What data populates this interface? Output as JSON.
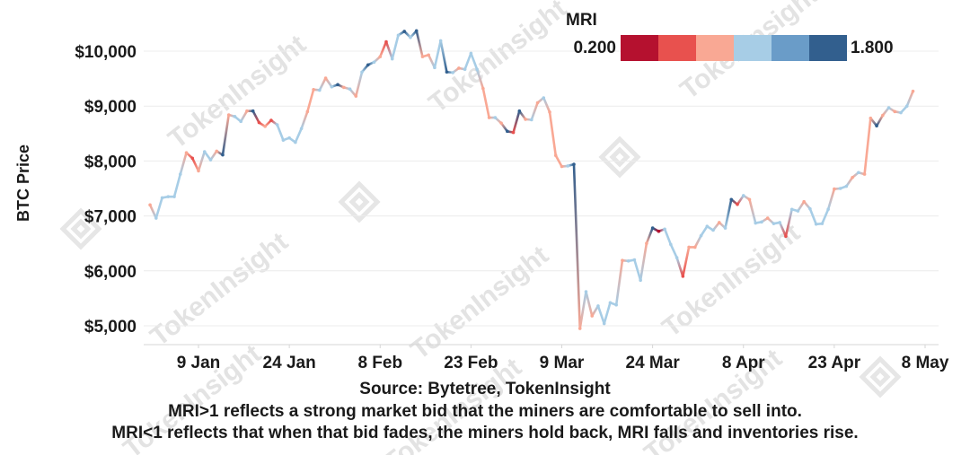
{
  "chart_data": {
    "type": "line",
    "ylabel": "BTC Price",
    "ylim": [
      4750,
      10600
    ],
    "yticks": [
      5000,
      6000,
      7000,
      8000,
      9000,
      10000
    ],
    "ytick_labels": [
      "$5,000",
      "$6,000",
      "$7,000",
      "$8,000",
      "$9,000",
      "$10,000"
    ],
    "xlim": [
      "2019-12-28",
      "2020-05-11"
    ],
    "xticks": [
      "2020-01-09",
      "2020-01-24",
      "2020-02-08",
      "2020-02-23",
      "2020-03-09",
      "2020-03-24",
      "2020-04-08",
      "2020-04-23",
      "2020-05-08"
    ],
    "xtick_labels": [
      "9 Jan",
      "24 Jan",
      "8 Feb",
      "23 Feb",
      "9 Mar",
      "24 Mar",
      "8 Apr",
      "23 Apr",
      "8 May"
    ],
    "grid": "horizontal",
    "legend": {
      "title": "MRI",
      "min_label": "0.200",
      "max_label": "1.800",
      "placement": "top-right",
      "colors": [
        "#b5112f",
        "#e8514e",
        "#f9a894",
        "#a7cde6",
        "#6a9cc8",
        "#325f8e"
      ]
    },
    "series": [
      {
        "points": [
          [
            "2020-01-01",
            7200,
            0.8
          ],
          [
            "2020-01-02",
            6960,
            1.2
          ],
          [
            "2020-01-03",
            7330,
            1.2
          ],
          [
            "2020-01-04",
            7350,
            1.2
          ],
          [
            "2020-01-05",
            7350,
            1.2
          ],
          [
            "2020-01-06",
            7760,
            1.2
          ],
          [
            "2020-01-07",
            8150,
            0.8
          ],
          [
            "2020-01-08",
            8050,
            0.6
          ],
          [
            "2020-01-09",
            7820,
            0.8
          ],
          [
            "2020-01-10",
            8170,
            1.2
          ],
          [
            "2020-01-11",
            8020,
            1.2
          ],
          [
            "2020-01-12",
            8180,
            0.8
          ],
          [
            "2020-01-13",
            8110,
            1.7
          ],
          [
            "2020-01-14",
            8840,
            0.8
          ],
          [
            "2020-01-15",
            8810,
            1.2
          ],
          [
            "2020-01-16",
            8720,
            1.2
          ],
          [
            "2020-01-17",
            8910,
            0.8
          ],
          [
            "2020-01-18",
            8910,
            1.6
          ],
          [
            "2020-01-19",
            8700,
            0.6
          ],
          [
            "2020-01-20",
            8630,
            0.8
          ],
          [
            "2020-01-21",
            8740,
            0.6
          ],
          [
            "2020-01-22",
            8660,
            1.2
          ],
          [
            "2020-01-23",
            8380,
            1.2
          ],
          [
            "2020-01-24",
            8420,
            1.2
          ],
          [
            "2020-01-25",
            8340,
            1.2
          ],
          [
            "2020-01-26",
            8590,
            1.2
          ],
          [
            "2020-01-27",
            8900,
            0.8
          ],
          [
            "2020-01-28",
            9300,
            0.8
          ],
          [
            "2020-01-29",
            9290,
            1.2
          ],
          [
            "2020-01-30",
            9510,
            0.8
          ],
          [
            "2020-01-31",
            9350,
            1.2
          ],
          [
            "2020-02-01",
            9390,
            1.6
          ],
          [
            "2020-02-02",
            9340,
            0.8
          ],
          [
            "2020-02-03",
            9310,
            1.2
          ],
          [
            "2020-02-04",
            9180,
            0.8
          ],
          [
            "2020-02-05",
            9620,
            1.2
          ],
          [
            "2020-02-06",
            9750,
            1.6
          ],
          [
            "2020-02-07",
            9800,
            1.2
          ],
          [
            "2020-02-08",
            9900,
            0.8
          ],
          [
            "2020-02-09",
            10170,
            0.6
          ],
          [
            "2020-02-10",
            9860,
            1.2
          ],
          [
            "2020-02-11",
            10290,
            1.2
          ],
          [
            "2020-02-12",
            10360,
            1.6
          ],
          [
            "2020-02-13",
            10250,
            1.2
          ],
          [
            "2020-02-14",
            10370,
            1.6
          ],
          [
            "2020-02-15",
            9900,
            0.8
          ],
          [
            "2020-02-16",
            9930,
            0.8
          ],
          [
            "2020-02-17",
            9700,
            1.2
          ],
          [
            "2020-02-18",
            10190,
            1.2
          ],
          [
            "2020-02-19",
            9620,
            1.6
          ],
          [
            "2020-02-20",
            9610,
            1.2
          ],
          [
            "2020-02-21",
            9690,
            0.8
          ],
          [
            "2020-02-22",
            9670,
            1.2
          ],
          [
            "2020-02-23",
            9960,
            1.2
          ],
          [
            "2020-02-24",
            9670,
            1.2
          ],
          [
            "2020-02-25",
            9320,
            0.8
          ],
          [
            "2020-02-26",
            8790,
            0.8
          ],
          [
            "2020-02-27",
            8790,
            1.2
          ],
          [
            "2020-02-28",
            8690,
            0.8
          ],
          [
            "2020-02-29",
            8540,
            1.6
          ],
          [
            "2020-03-01",
            8520,
            0.6
          ],
          [
            "2020-03-02",
            8910,
            1.6
          ],
          [
            "2020-03-03",
            8760,
            0.8
          ],
          [
            "2020-03-04",
            8750,
            1.2
          ],
          [
            "2020-03-05",
            9060,
            0.8
          ],
          [
            "2020-03-06",
            9150,
            1.2
          ],
          [
            "2020-03-07",
            8890,
            0.8
          ],
          [
            "2020-03-08",
            8100,
            0.8
          ],
          [
            "2020-03-09",
            7900,
            0.8
          ],
          [
            "2020-03-10",
            7910,
            1.2
          ],
          [
            "2020-03-11",
            7940,
            1.7
          ],
          [
            "2020-03-12",
            4950,
            0.8
          ],
          [
            "2020-03-13",
            5620,
            1.2
          ],
          [
            "2020-03-14",
            5180,
            0.8
          ],
          [
            "2020-03-15",
            5360,
            1.2
          ],
          [
            "2020-03-16",
            5040,
            1.2
          ],
          [
            "2020-03-17",
            5420,
            1.2
          ],
          [
            "2020-03-18",
            5380,
            1.2
          ],
          [
            "2020-03-19",
            6190,
            0.8
          ],
          [
            "2020-03-20",
            6180,
            1.2
          ],
          [
            "2020-03-21",
            6200,
            1.2
          ],
          [
            "2020-03-22",
            5830,
            1.2
          ],
          [
            "2020-03-23",
            6500,
            0.8
          ],
          [
            "2020-03-24",
            6780,
            1.6
          ],
          [
            "2020-03-25",
            6720,
            0.4
          ],
          [
            "2020-03-26",
            6760,
            1.2
          ],
          [
            "2020-03-27",
            6480,
            1.2
          ],
          [
            "2020-03-28",
            6240,
            1.2
          ],
          [
            "2020-03-29",
            5900,
            0.6
          ],
          [
            "2020-03-30",
            6430,
            0.8
          ],
          [
            "2020-03-31",
            6430,
            0.8
          ],
          [
            "2020-04-01",
            6640,
            1.2
          ],
          [
            "2020-04-02",
            6810,
            1.2
          ],
          [
            "2020-04-03",
            6740,
            1.2
          ],
          [
            "2020-04-04",
            6880,
            0.8
          ],
          [
            "2020-04-05",
            6780,
            1.2
          ],
          [
            "2020-04-06",
            7300,
            1.6
          ],
          [
            "2020-04-07",
            7210,
            0.6
          ],
          [
            "2020-04-08",
            7370,
            1.2
          ],
          [
            "2020-04-09",
            7300,
            0.8
          ],
          [
            "2020-04-10",
            6870,
            1.2
          ],
          [
            "2020-04-11",
            6890,
            1.2
          ],
          [
            "2020-04-12",
            6960,
            0.8
          ],
          [
            "2020-04-13",
            6860,
            1.2
          ],
          [
            "2020-04-14",
            6880,
            1.2
          ],
          [
            "2020-04-15",
            6630,
            0.6
          ],
          [
            "2020-04-16",
            7120,
            1.2
          ],
          [
            "2020-04-17",
            7090,
            1.2
          ],
          [
            "2020-04-18",
            7260,
            0.8
          ],
          [
            "2020-04-19",
            7130,
            1.2
          ],
          [
            "2020-04-20",
            6850,
            1.2
          ],
          [
            "2020-04-21",
            6860,
            1.2
          ],
          [
            "2020-04-22",
            7120,
            1.2
          ],
          [
            "2020-04-23",
            7490,
            0.8
          ],
          [
            "2020-04-24",
            7500,
            1.2
          ],
          [
            "2020-04-25",
            7540,
            1.2
          ],
          [
            "2020-04-26",
            7700,
            0.8
          ],
          [
            "2020-04-27",
            7790,
            1.2
          ],
          [
            "2020-04-28",
            7760,
            0.8
          ],
          [
            "2020-04-29",
            8780,
            0.8
          ],
          [
            "2020-04-30",
            8640,
            1.6
          ],
          [
            "2020-05-01",
            8830,
            0.8
          ],
          [
            "2020-05-02",
            8970,
            1.2
          ],
          [
            "2020-05-03",
            8900,
            0.8
          ],
          [
            "2020-05-04",
            8880,
            1.2
          ],
          [
            "2020-05-05",
            9000,
            1.2
          ],
          [
            "2020-05-06",
            9270,
            0.8
          ]
        ]
      }
    ]
  },
  "watermark": "TokenInsight",
  "footer": {
    "source": "Source: Bytetree, TokenInsight",
    "note1": "MRI>1 reflects a strong market bid that the miners are comfortable to sell into.",
    "note2": "MRI<1 reflects that when that bid fades, the miners hold back, MRI falls and inventories rise."
  }
}
